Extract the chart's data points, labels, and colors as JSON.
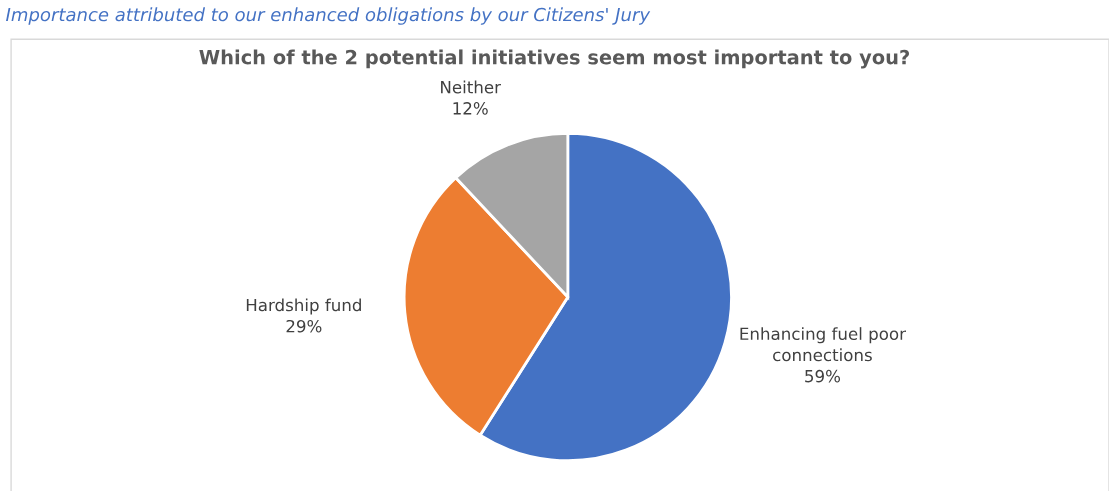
{
  "chart_data": {
    "type": "pie",
    "title": "Which of the 2 potential initiatives seem most important to you?",
    "annotations": [
      "Importance attributed to our enhanced obligations by our Citizens' Jury"
    ],
    "categories": [
      "Enhancing fuel poor\nconnections",
      "Hardship fund",
      "Neither"
    ],
    "values": [
      59,
      29,
      12
    ],
    "colors": [
      "#4472c4",
      "#ed7d31",
      "#a5a5a5"
    ],
    "value_labels": [
      "59%",
      "29%",
      "12%"
    ]
  }
}
